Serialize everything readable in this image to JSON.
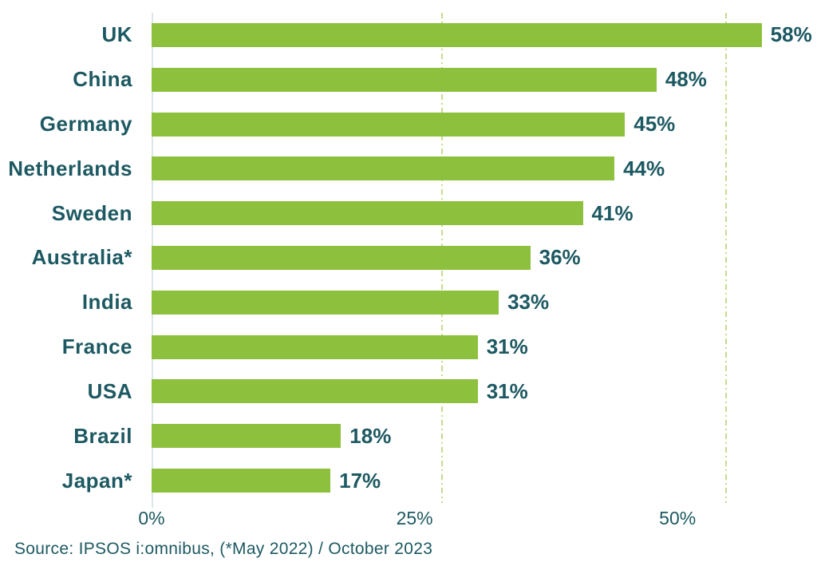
{
  "chart_data": {
    "type": "bar",
    "orientation": "horizontal",
    "title": "",
    "xlabel": "",
    "ylabel": "",
    "categories": [
      "UK",
      "China",
      "Germany",
      "Netherlands",
      "Sweden",
      "Australia*",
      "India",
      "France",
      "USA",
      "Brazil",
      "Japan*"
    ],
    "values": [
      58,
      48,
      45,
      44,
      41,
      36,
      33,
      31,
      31,
      18,
      17
    ],
    "value_labels": [
      "58%",
      "48%",
      "45%",
      "44%",
      "41%",
      "36%",
      "33%",
      "31%",
      "31%",
      "18%",
      "17%"
    ],
    "x_ticks": [
      {
        "value": 0,
        "label": "0%"
      },
      {
        "value": 25,
        "label": "25%"
      },
      {
        "value": 50,
        "label": "50%"
      }
    ],
    "xlim": [
      0,
      62.5
    ],
    "grid": "dashed vertical gridlines at 25% and 50%",
    "legend": "none"
  },
  "source_note": "Source: IPSOS i:omnibus, (*May 2022) / October 2023",
  "colors": {
    "bar": "#8dc03c",
    "gridline": "#c6db8e",
    "text": "#1d5962",
    "axis_line": "#dce6e8",
    "background": "#ffffff"
  }
}
